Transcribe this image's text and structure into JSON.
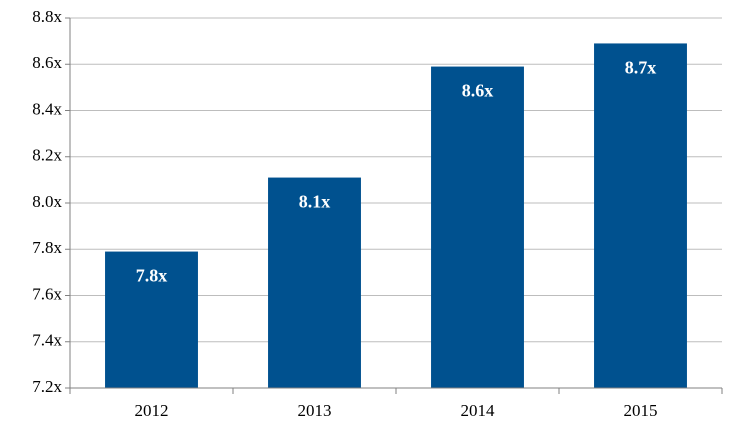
{
  "chart_data": {
    "type": "bar",
    "categories": [
      "2012",
      "2013",
      "2014",
      "2015"
    ],
    "values": [
      7.79,
      8.11,
      8.59,
      8.69
    ],
    "value_labels": [
      "7.8x",
      "8.1x",
      "8.6x",
      "8.7x"
    ],
    "color": "#00518f",
    "ylim": [
      7.2,
      8.8
    ],
    "yticks": [
      {
        "value": 7.2,
        "label": "7.2x"
      },
      {
        "value": 7.4,
        "label": "7.4x"
      },
      {
        "value": 7.6,
        "label": "7.6x"
      },
      {
        "value": 7.8,
        "label": "7.8x"
      },
      {
        "value": 8.0,
        "label": "8.0x"
      },
      {
        "value": 8.2,
        "label": "8.2x"
      },
      {
        "value": 8.4,
        "label": "8.4x"
      },
      {
        "value": 8.6,
        "label": "8.6x"
      },
      {
        "value": 8.8,
        "label": "8.8x"
      }
    ],
    "grid": true
  }
}
